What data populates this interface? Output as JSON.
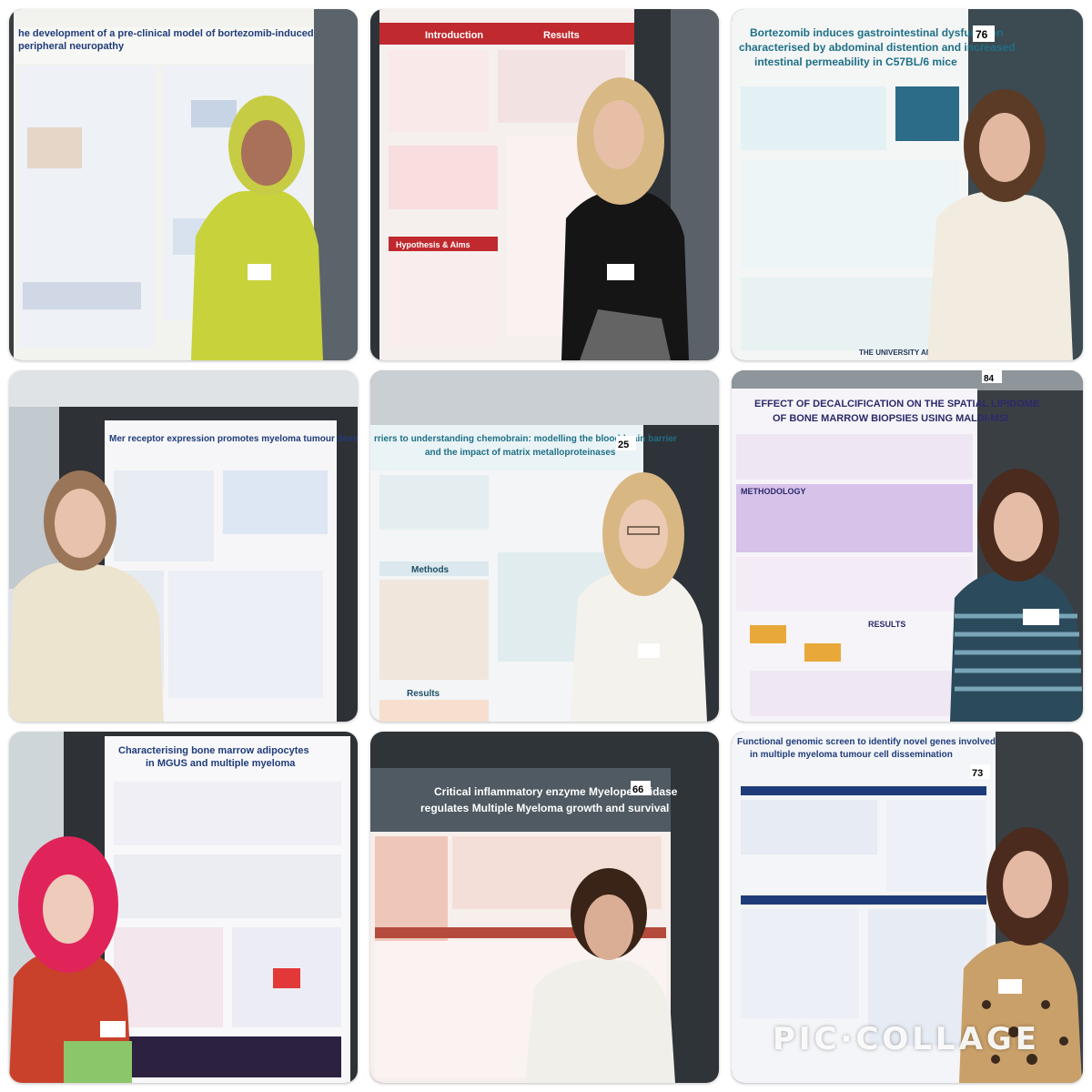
{
  "posters": [
    {
      "title_line1": "he development of a pre-clinical model of bortezomib-induced",
      "title_line2": "peripheral neuropathy"
    },
    {
      "header_left": "Introduction",
      "header_right": "Results",
      "section_hypothesis": "Hypothesis & Aims"
    },
    {
      "title_line1": "Bortezomib induces gastrointestinal dysfunction",
      "title_line2": "characterised by abdominal distention and increased",
      "title_line3": "intestinal permeability in C57BL/6 mice",
      "board_number": "76",
      "institution": "THE UNIVERSITY ADELAIDE"
    },
    {
      "title": "Mer receptor expression promotes myeloma tumour development"
    },
    {
      "title_line1": "rriers to understanding chemobrain: modelling the blood-brain barrier",
      "title_line2": "and the impact of matrix metalloproteinases",
      "board_number": "25",
      "section_methods": "Methods",
      "section_results": "Results"
    },
    {
      "title_line1": "EFFECT OF DECALCIFICATION ON THE SPATIAL LIPIDOME",
      "title_line2": "OF BONE MARROW BIOPSIES USING MALDI-MSI",
      "board_number": "84",
      "section_methodology": "METHODOLOGY",
      "section_results": "RESULTS"
    },
    {
      "title_line1": "Characterising bone marrow adipocytes",
      "title_line2": "in MGUS and multiple myeloma"
    },
    {
      "title_line1": "Critical inflammatory enzyme Myeloperoxidase",
      "title_line2": "regulates Multiple Myeloma growth and survival",
      "board_number": "66"
    },
    {
      "title_line1": "Functional genomic screen to identify novel genes involved",
      "title_line2": "in multiple myeloma tumour cell dissemination",
      "board_number": "73"
    }
  ],
  "watermark": "PIC·COLLAGE"
}
